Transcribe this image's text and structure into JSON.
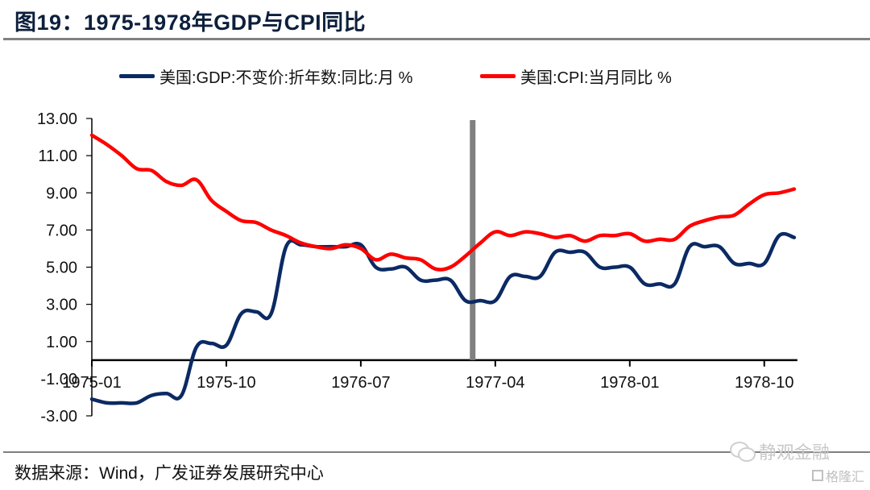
{
  "title": "图19：1975-1978年GDP与CPI同比",
  "source": "数据来源：Wind，广发证券发展研究中心",
  "watermark": {
    "primary": "静观金融",
    "secondary": "格隆汇"
  },
  "chart_data": {
    "type": "line",
    "title": "图19：1975-1978年GDP与CPI同比",
    "xlabel": "",
    "ylabel": "",
    "ylim": [
      -3,
      13
    ],
    "yticks": [
      13,
      11,
      9,
      7,
      5,
      3,
      1,
      -1,
      -3
    ],
    "ytick_labels": [
      "13.00",
      "11.00",
      "9.00",
      "7.00",
      "5.00",
      "3.00",
      "1.00",
      "-1.00",
      "-3.00"
    ],
    "xtick_labels": [
      "1975-01",
      "1975-10",
      "1976-07",
      "1977-04",
      "1978-01",
      "1978-10"
    ],
    "xtick_indices": [
      0,
      9,
      18,
      27,
      36,
      45
    ],
    "grid": false,
    "legend_position": "top",
    "x": [
      "1975-01",
      "1975-02",
      "1975-03",
      "1975-04",
      "1975-05",
      "1975-06",
      "1975-07",
      "1975-08",
      "1975-09",
      "1975-10",
      "1975-11",
      "1975-12",
      "1976-01",
      "1976-02",
      "1976-03",
      "1976-04",
      "1976-05",
      "1976-06",
      "1976-07",
      "1976-08",
      "1976-09",
      "1976-10",
      "1976-11",
      "1976-12",
      "1977-01",
      "1977-02",
      "1977-03",
      "1977-04",
      "1977-05",
      "1977-06",
      "1977-07",
      "1977-08",
      "1977-09",
      "1977-10",
      "1977-11",
      "1977-12",
      "1978-01",
      "1978-02",
      "1978-03",
      "1978-04",
      "1978-05",
      "1978-06",
      "1978-07",
      "1978-08",
      "1978-09",
      "1978-10",
      "1978-11",
      "1978-12"
    ],
    "series": [
      {
        "name": "美国:GDP:不变价:折年数:同比:月 %",
        "color": "#0b2a64",
        "values": [
          -2.1,
          -2.3,
          -2.3,
          -2.3,
          -1.9,
          -1.8,
          -1.9,
          0.7,
          0.9,
          0.8,
          2.5,
          2.6,
          2.5,
          6.1,
          6.2,
          6.1,
          6.1,
          6.1,
          6.2,
          5.0,
          4.9,
          5.0,
          4.3,
          4.3,
          4.3,
          3.2,
          3.2,
          3.2,
          4.5,
          4.5,
          4.5,
          5.8,
          5.8,
          5.8,
          5.0,
          5.0,
          5.0,
          4.1,
          4.1,
          4.1,
          6.1,
          6.1,
          6.1,
          5.2,
          5.2,
          5.2,
          6.7,
          6.6
        ]
      },
      {
        "name": "美国:CPI:当月同比 %",
        "color": "#ff0000",
        "values": [
          12.1,
          11.6,
          11.0,
          10.3,
          10.2,
          9.6,
          9.4,
          9.7,
          8.6,
          8.0,
          7.5,
          7.4,
          7.0,
          6.7,
          6.3,
          6.1,
          6.0,
          6.2,
          6.0,
          5.4,
          5.7,
          5.5,
          5.4,
          4.9,
          5.0,
          5.6,
          6.3,
          6.9,
          6.7,
          6.9,
          6.8,
          6.6,
          6.7,
          6.4,
          6.7,
          6.7,
          6.8,
          6.4,
          6.5,
          6.5,
          7.2,
          7.5,
          7.7,
          7.8,
          8.4,
          8.9,
          9.0,
          9.2
        ]
      }
    ],
    "annotations": [
      {
        "type": "vertical-line",
        "x": "1977-02",
        "color": "#808080"
      }
    ]
  }
}
